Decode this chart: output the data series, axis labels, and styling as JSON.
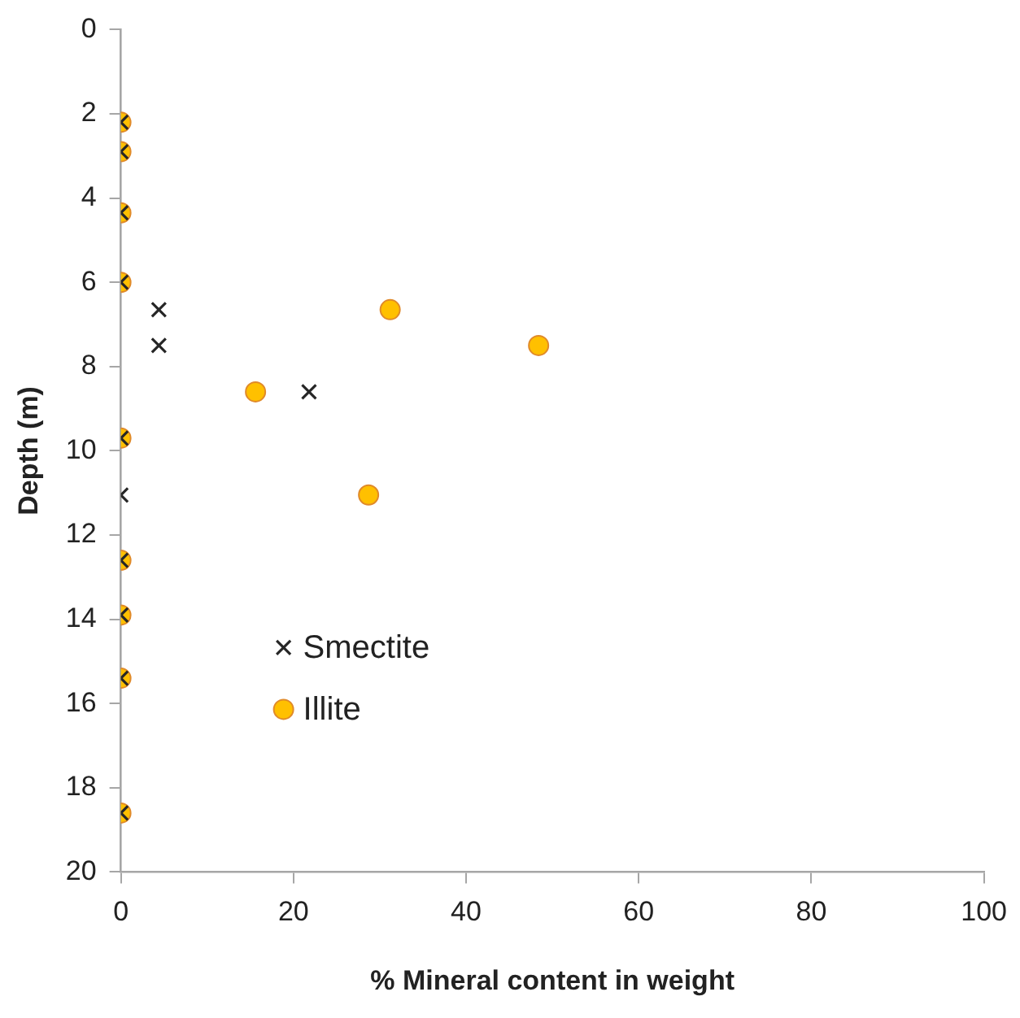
{
  "chart_data": {
    "type": "scatter",
    "xlabel": "% Mineral content in weight",
    "ylabel": "Depth (m)",
    "xlim": [
      0,
      100
    ],
    "xticks": [
      0,
      20,
      40,
      60,
      80,
      100
    ],
    "ylim": [
      20,
      0
    ],
    "yticks": [
      0,
      2,
      4,
      6,
      8,
      10,
      12,
      14,
      16,
      18,
      20
    ],
    "grid": false,
    "legend": "bottom left",
    "series": [
      {
        "name": "Smectite",
        "color": "#262626",
        "marker": "cross",
        "x": [
          0,
          0,
          0,
          0,
          4.4,
          4.4,
          21.8,
          0,
          0,
          0,
          0,
          0,
          0
        ],
        "values": [
          2.2,
          2.9,
          4.35,
          6.0,
          6.65,
          7.5,
          8.6,
          9.7,
          11.05,
          12.6,
          13.9,
          15.4,
          18.6
        ]
      },
      {
        "name": "Illite",
        "color": "#ffc000",
        "marker": "circle",
        "x": [
          0,
          0,
          0,
          0,
          31.2,
          48.4,
          15.6,
          0,
          28.7,
          0,
          0,
          0,
          0
        ],
        "values": [
          2.2,
          2.9,
          4.35,
          6.0,
          6.65,
          7.5,
          8.6,
          9.7,
          11.05,
          12.6,
          13.9,
          15.4,
          18.6
        ]
      }
    ]
  }
}
